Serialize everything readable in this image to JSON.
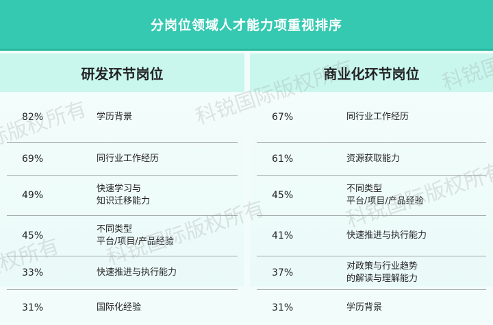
{
  "title": "分岗位领域人才能力项重视排序",
  "watermark": "科锐国际版权所有",
  "colors": {
    "header": "#35c9b1",
    "subheader": "#c9f7ee"
  },
  "panels": [
    {
      "heading": "研发环节岗位",
      "rows": [
        {
          "pct": "82%",
          "label": "学历背景"
        },
        {
          "pct": "69%",
          "label": "同行业工作经历"
        },
        {
          "pct": "49%",
          "label": "快速学习与\n知识迁移能力"
        },
        {
          "pct": "45%",
          "label": "不同类型\n平台/项目/产品经验"
        },
        {
          "pct": "33%",
          "label": "快速推进与执行能力"
        },
        {
          "pct": "31%",
          "label": "国际化经验"
        }
      ]
    },
    {
      "heading": "商业化环节岗位",
      "rows": [
        {
          "pct": "67%",
          "label": "同行业工作经历"
        },
        {
          "pct": "61%",
          "label": "资源获取能力"
        },
        {
          "pct": "45%",
          "label": "不同类型\n平台/项目/产品经验"
        },
        {
          "pct": "41%",
          "label": "快速推进与执行能力"
        },
        {
          "pct": "37%",
          "label": "对政策与行业趋势\n的解读与理解能力"
        },
        {
          "pct": "31%",
          "label": "学历背景"
        }
      ]
    }
  ]
}
